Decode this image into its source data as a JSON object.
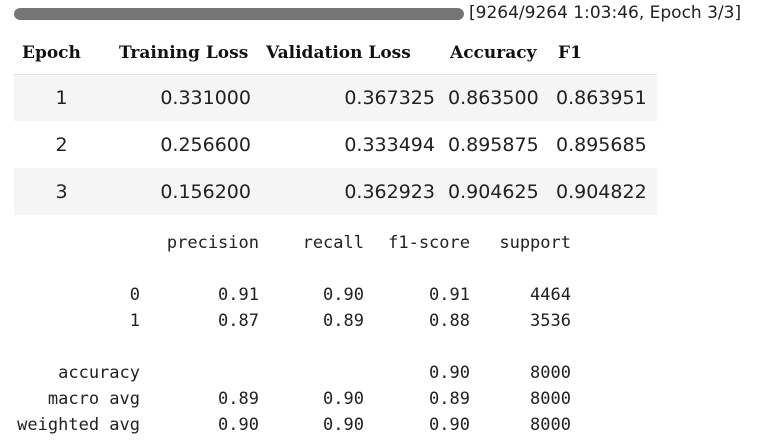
{
  "progress": {
    "fraction": 1.0,
    "text": "[9264/9264 1:03:46, Epoch 3/3]"
  },
  "train_table": {
    "headers": [
      "Epoch",
      "Training Loss",
      "Validation Loss",
      "Accuracy",
      "F1"
    ],
    "rows": [
      [
        "1",
        "0.331000",
        "0.367325",
        "0.863500",
        "0.863951"
      ],
      [
        "2",
        "0.256600",
        "0.333494",
        "0.895875",
        "0.895685"
      ],
      [
        "3",
        "0.156200",
        "0.362923",
        "0.904625",
        "0.904822"
      ]
    ]
  },
  "report": {
    "headers": [
      "precision",
      "recall",
      "f1-score",
      "support"
    ],
    "class_rows": [
      {
        "label": "0",
        "precision": "0.91",
        "recall": "0.90",
        "f1": "0.91",
        "support": "4464"
      },
      {
        "label": "1",
        "precision": "0.87",
        "recall": "0.89",
        "f1": "0.88",
        "support": "3536"
      }
    ],
    "accuracy_row": {
      "label": "accuracy",
      "f1": "0.90",
      "support": "8000"
    },
    "avg_rows": [
      {
        "label": "macro avg",
        "precision": "0.89",
        "recall": "0.90",
        "f1": "0.89",
        "support": "8000"
      },
      {
        "label": "weighted avg",
        "precision": "0.90",
        "recall": "0.90",
        "f1": "0.90",
        "support": "8000"
      }
    ]
  }
}
